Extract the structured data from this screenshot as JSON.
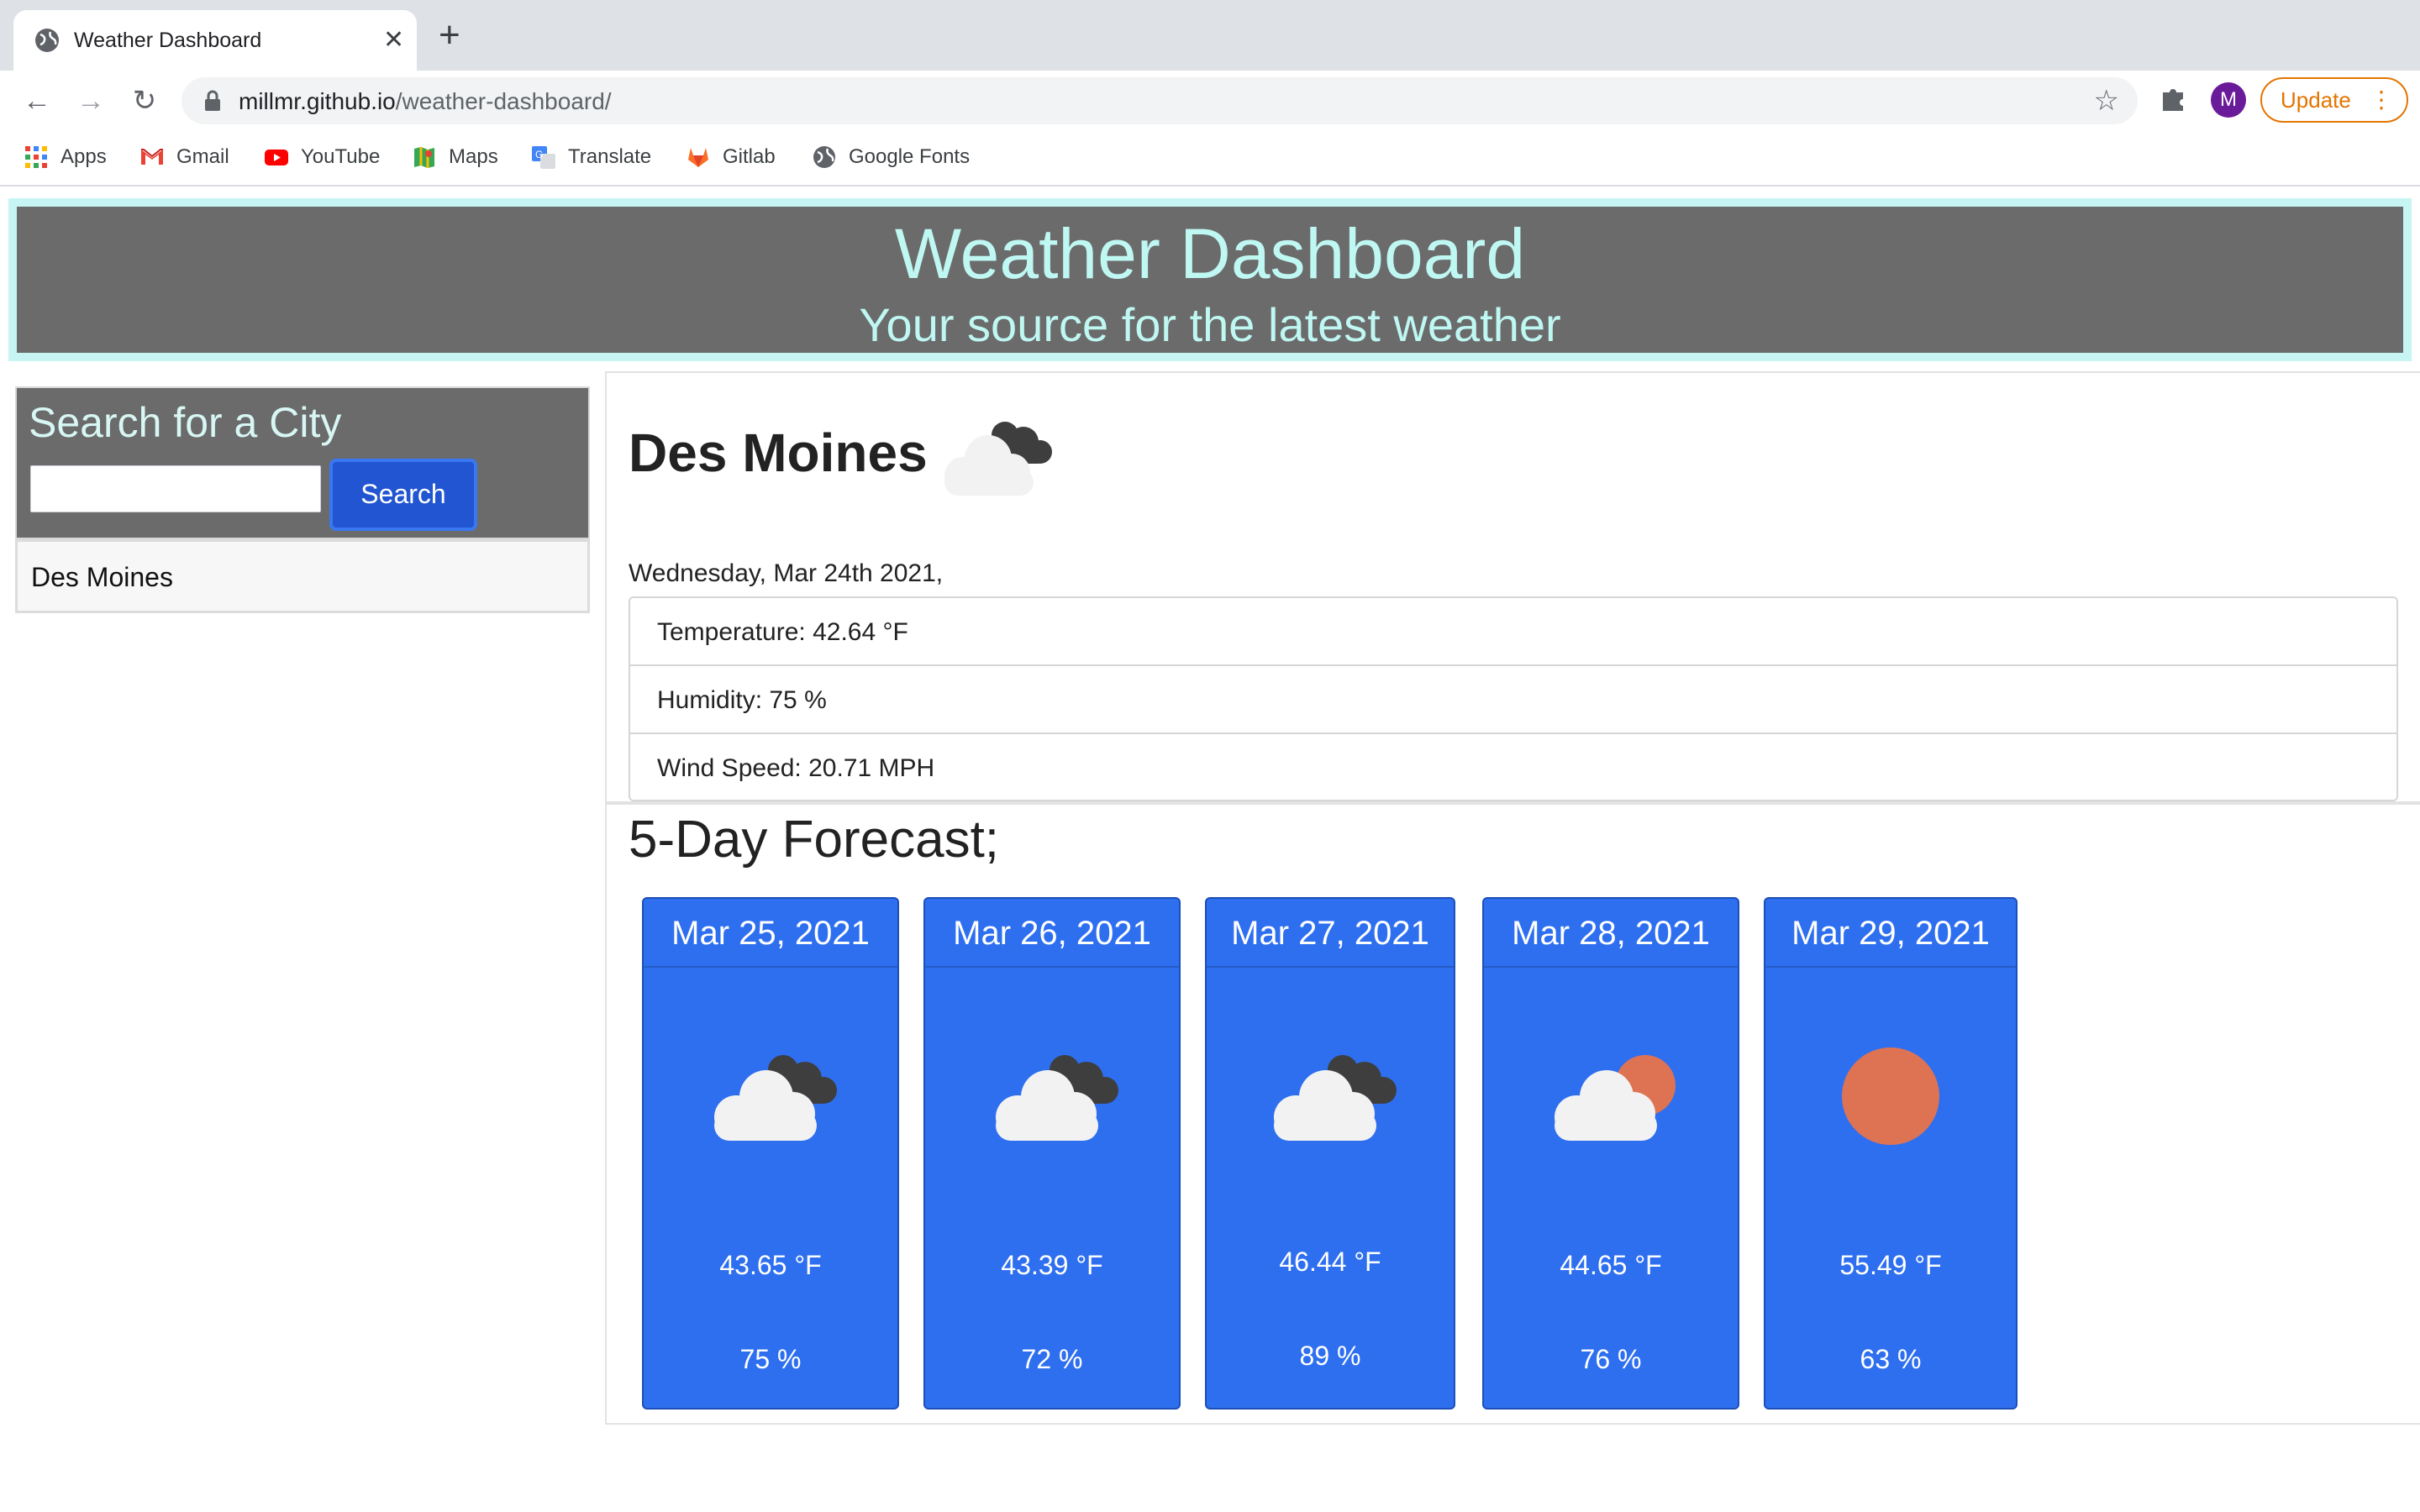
{
  "browser": {
    "tab_title": "Weather Dashboard",
    "close_glyph": "✕",
    "new_tab_glyph": "+",
    "url_host": "millmr.github.io",
    "url_path": "/weather-dashboard/",
    "avatar_letter": "M",
    "update_label": "Update",
    "bookmarks": [
      {
        "label": "Apps",
        "icon": "apps-grid-icon"
      },
      {
        "label": "Gmail",
        "icon": "gmail-icon"
      },
      {
        "label": "YouTube",
        "icon": "youtube-icon"
      },
      {
        "label": "Maps",
        "icon": "maps-icon"
      },
      {
        "label": "Translate",
        "icon": "translate-icon"
      },
      {
        "label": "Gitlab",
        "icon": "gitlab-icon"
      },
      {
        "label": "Google Fonts",
        "icon": "globe-icon"
      }
    ]
  },
  "header": {
    "title": "Weather Dashboard",
    "subtitle": "Your source for the latest weather"
  },
  "search": {
    "title": "Search for a City",
    "input_value": "",
    "button_label": "Search",
    "history": [
      "Des Moines"
    ]
  },
  "current": {
    "city": "Des Moines",
    "icon": "clouds-icon",
    "date": "Wednesday, Mar 24th 2021,",
    "temperature": "Temperature: 42.64 °F",
    "humidity": "Humidity: 75 %",
    "wind": "Wind Speed: 20.71 MPH"
  },
  "forecast": {
    "title": "5-Day Forecast;",
    "days": [
      {
        "date": "Mar 25, 2021",
        "icon": "clouds-icon",
        "temp": "43.65 °F",
        "humidity": "75 %"
      },
      {
        "date": "Mar 26, 2021",
        "icon": "clouds-icon",
        "temp": "43.39 °F",
        "humidity": "72 %"
      },
      {
        "date": "Mar 27, 2021",
        "icon": "clouds-icon",
        "temp": "46.44 °F",
        "humidity": "89 %"
      },
      {
        "date": "Mar 28, 2021",
        "icon": "partly-cloudy-icon",
        "temp": "44.65 °F",
        "humidity": "76 %"
      },
      {
        "date": "Mar 29, 2021",
        "icon": "sun-icon",
        "temp": "55.49 °F",
        "humidity": "63 %"
      }
    ]
  },
  "colors": {
    "header_bg": "#6b6b6b",
    "header_text": "#bff7f2",
    "card_bg": "#2e6ff0",
    "sun": "#de7354",
    "dark_cloud": "#3e3e3e"
  }
}
